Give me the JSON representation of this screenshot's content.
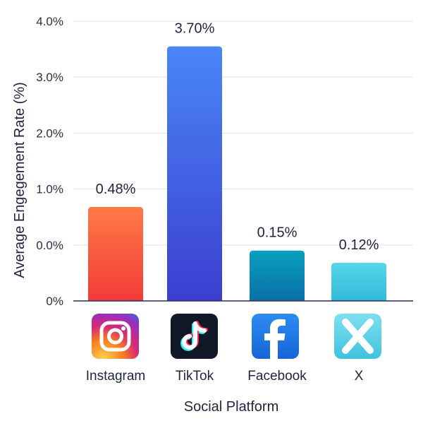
{
  "chart_data": {
    "type": "bar",
    "xlabel": "Social Platform",
    "ylabel": "Average Engegement Rate (%)",
    "categories": [
      "Instagram",
      "TikTok",
      "Facebook",
      "X"
    ],
    "values": [
      0.48,
      3.7,
      0.15,
      0.12
    ],
    "data_labels": [
      "0.48%",
      "3.70%",
      "0.15%",
      "0.12%"
    ],
    "y_ticks": [
      {
        "label": "0%",
        "pos": 0
      },
      {
        "label": "0.0%",
        "pos": 1
      },
      {
        "label": "1.0%",
        "pos": 2
      },
      {
        "label": "2.0%",
        "pos": 3
      },
      {
        "label": "3.0%",
        "pos": 4
      },
      {
        "label": "4.0%",
        "pos": 5
      }
    ],
    "grid": true,
    "bar_fill_levels": [
      1.68,
      4.55,
      0.9,
      0.68
    ],
    "colors": {
      "instagram": [
        "#ff7a45",
        "#f23a3a"
      ],
      "tiktok": [
        "#4a86f7",
        "#3b3fd0"
      ],
      "facebook": [
        "#0aa0bf",
        "#0b6fa6"
      ],
      "x": [
        "#57d6ea",
        "#2fbad8"
      ],
      "axis": "#2c2f55",
      "grid": "#e3e5ea"
    },
    "icons": [
      "instagram-icon",
      "tiktok-icon",
      "facebook-icon",
      "x-icon"
    ]
  }
}
